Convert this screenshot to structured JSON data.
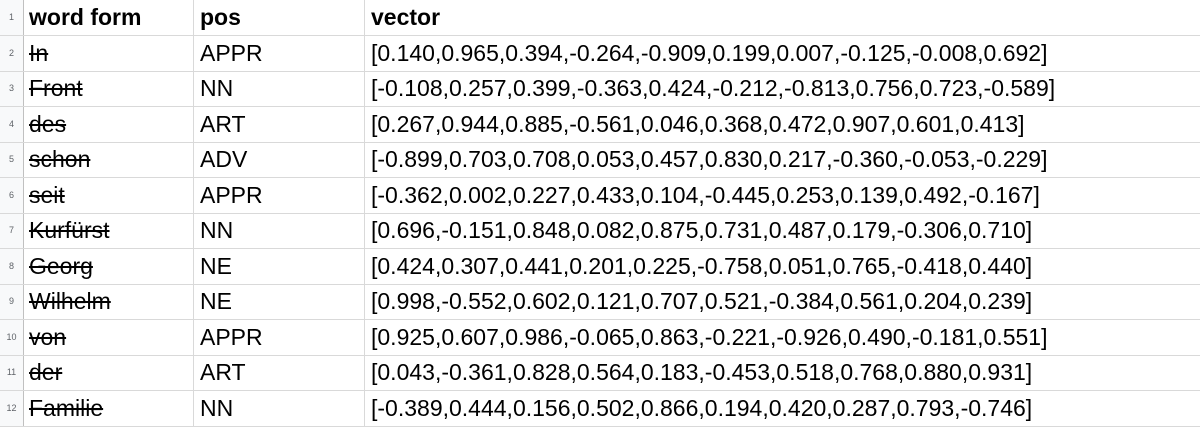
{
  "headers": {
    "row_number": "1",
    "word": "word form",
    "pos": "pos",
    "vector": "vector"
  },
  "rows": [
    {
      "n": "2",
      "word": "In",
      "pos": "APPR",
      "vector": "[0.140,0.965,0.394,-0.264,-0.909,0.199,0.007,-0.125,-0.008,0.692]"
    },
    {
      "n": "3",
      "word": "Front",
      "pos": "NN",
      "vector": "[-0.108,0.257,0.399,-0.363,0.424,-0.212,-0.813,0.756,0.723,-0.589]"
    },
    {
      "n": "4",
      "word": "des",
      "pos": "ART",
      "vector": "[0.267,0.944,0.885,-0.561,0.046,0.368,0.472,0.907,0.601,0.413]"
    },
    {
      "n": "5",
      "word": "schon",
      "pos": "ADV",
      "vector": "[-0.899,0.703,0.708,0.053,0.457,0.830,0.217,-0.360,-0.053,-0.229]"
    },
    {
      "n": "6",
      "word": "seit",
      "pos": "APPR",
      "vector": "[-0.362,0.002,0.227,0.433,0.104,-0.445,0.253,0.139,0.492,-0.167]"
    },
    {
      "n": "7",
      "word": "Kurfürst",
      "pos": "NN",
      "vector": "[0.696,-0.151,0.848,0.082,0.875,0.731,0.487,0.179,-0.306,0.710]"
    },
    {
      "n": "8",
      "word": "Georg",
      "pos": "NE",
      "vector": "[0.424,0.307,0.441,0.201,0.225,-0.758,0.051,0.765,-0.418,0.440]"
    },
    {
      "n": "9",
      "word": "Wilhelm",
      "pos": "NE",
      "vector": "[0.998,-0.552,0.602,0.121,0.707,0.521,-0.384,0.561,0.204,0.239]"
    },
    {
      "n": "10",
      "word": "von",
      "pos": "APPR",
      "vector": "[0.925,0.607,0.986,-0.065,0.863,-0.221,-0.926,0.490,-0.181,0.551]"
    },
    {
      "n": "11",
      "word": "der",
      "pos": "ART",
      "vector": "[0.043,-0.361,0.828,0.564,0.183,-0.453,0.518,0.768,0.880,0.931]"
    },
    {
      "n": "12",
      "word": "Familie",
      "pos": "NN",
      "vector": "[-0.389,0.444,0.156,0.502,0.866,0.194,0.420,0.287,0.793,-0.746]"
    }
  ]
}
